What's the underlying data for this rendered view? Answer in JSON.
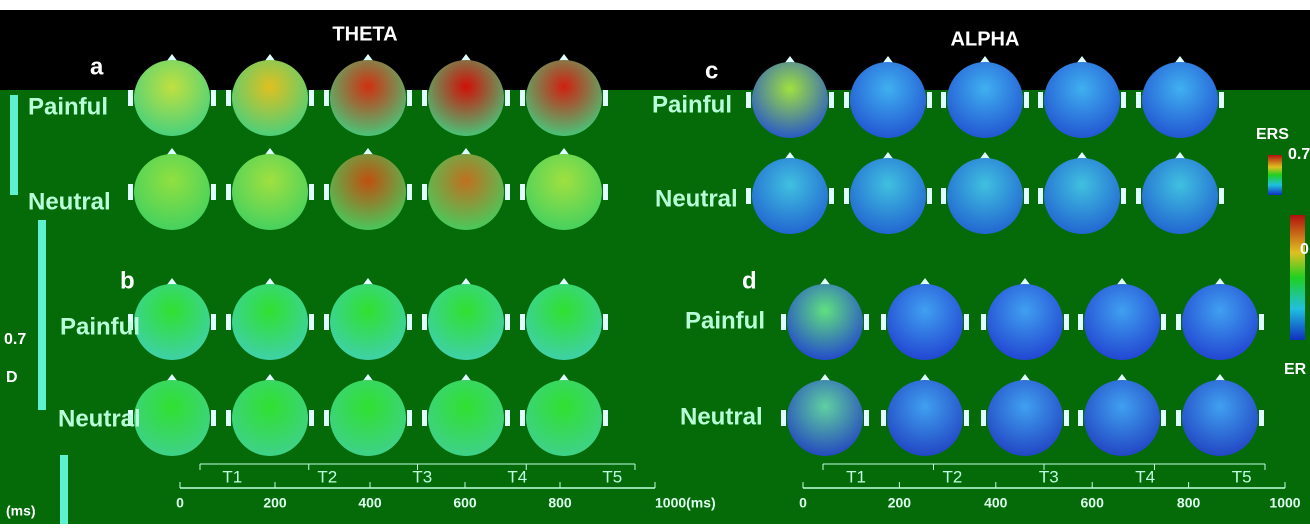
{
  "header": {
    "left_title": "THETA",
    "right_title": "ALPHA"
  },
  "panels": [
    {
      "letter": "a",
      "rows": [
        "Painful",
        "Neutral"
      ]
    },
    {
      "letter": "b",
      "rows": [
        "Painful",
        "Neutral"
      ]
    },
    {
      "letter": "c",
      "rows": [
        "Painful",
        "Neutral"
      ]
    },
    {
      "letter": "d",
      "rows": [
        "Painful",
        "Neutral"
      ]
    }
  ],
  "timelines": [
    {
      "segments": [
        "T1",
        "T2",
        "T3",
        "T4",
        "T5"
      ],
      "ticks": [
        "0",
        "200",
        "400",
        "600",
        "800",
        "1000(ms)"
      ]
    },
    {
      "segments": [
        "T1",
        "T2",
        "T3",
        "T4",
        "T5"
      ],
      "ticks": [
        "0",
        "200",
        "400",
        "600",
        "800",
        "1000"
      ]
    }
  ],
  "colorbar": {
    "title": "ERS",
    "max": "0.7",
    "mid": "0",
    "bottom": "ER"
  },
  "left_edge": {
    "labels": [
      "0.7",
      "D",
      "(ms)"
    ]
  }
}
